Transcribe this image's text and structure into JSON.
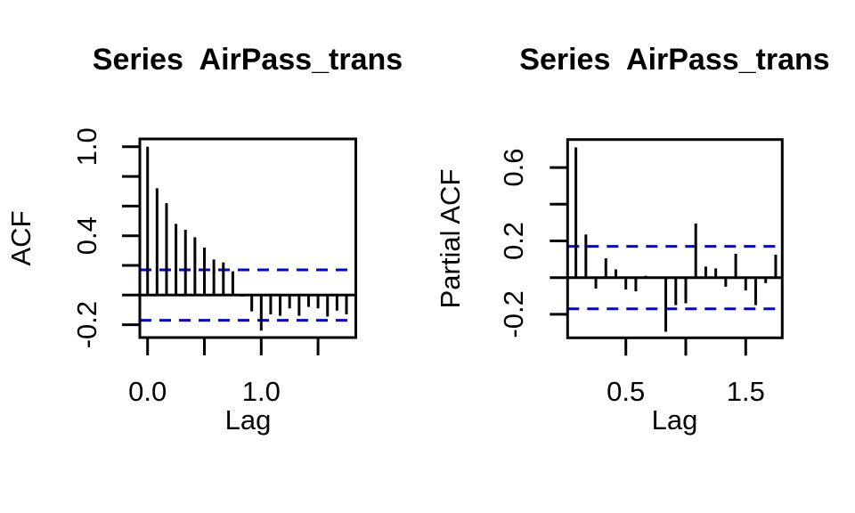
{
  "figure": {
    "background": "#ffffff",
    "foreground": "#000000"
  },
  "chart_data": [
    {
      "type": "bar",
      "subtype": "autocorrelation",
      "title": "Series  AirPass_trans",
      "xlabel": "Lag",
      "ylabel": "ACF",
      "lag_unit": "years",
      "lag_step_years": 0.08333,
      "lags_months": [
        0,
        1,
        2,
        3,
        4,
        5,
        6,
        7,
        8,
        9,
        10,
        11,
        12,
        13,
        14,
        15,
        16,
        17,
        18,
        19,
        20,
        21
      ],
      "values": [
        1.0,
        0.72,
        0.62,
        0.48,
        0.44,
        0.39,
        0.32,
        0.24,
        0.22,
        0.16,
        -0.01,
        -0.11,
        -0.24,
        -0.13,
        -0.14,
        -0.09,
        -0.14,
        -0.08,
        -0.09,
        -0.145,
        -0.105,
        -0.13
      ],
      "conf_interval": 0.17,
      "conf_line_color": "#0000ee",
      "conf_line_style": "dashed",
      "bar_color": "#000000",
      "x_ticks": {
        "values": [
          0.0,
          0.5,
          1.0,
          1.5
        ],
        "labels": [
          "0.0",
          "",
          "1.0",
          ""
        ]
      },
      "y_ticks": {
        "values": [
          1.0,
          0.8,
          0.6,
          0.4,
          0.2,
          0.0,
          -0.2
        ],
        "labels": [
          "1.0",
          "",
          "",
          "0.4",
          "",
          "",
          "-0.2"
        ]
      },
      "xlim": [
        -0.07,
        1.82
      ],
      "ylim": [
        -0.28,
        1.05
      ],
      "grid": "off",
      "legend": "none"
    },
    {
      "type": "bar",
      "subtype": "partial-autocorrelation",
      "title": "Series  AirPass_trans",
      "xlabel": "Lag",
      "ylabel": "Partial ACF",
      "lag_unit": "years",
      "lag_step_years": 0.08333,
      "lags_months": [
        1,
        2,
        3,
        4,
        5,
        6,
        7,
        8,
        9,
        10,
        11,
        12,
        13,
        14,
        15,
        16,
        17,
        18,
        19,
        20,
        21
      ],
      "values": [
        0.71,
        0.235,
        -0.06,
        0.105,
        0.045,
        -0.065,
        -0.075,
        0.01,
        0.005,
        -0.295,
        -0.15,
        -0.14,
        0.295,
        0.06,
        0.05,
        -0.05,
        0.13,
        -0.07,
        -0.15,
        -0.03,
        0.125
      ],
      "conf_interval": 0.17,
      "conf_line_color": "#0000ee",
      "conf_line_style": "dashed",
      "bar_color": "#000000",
      "x_ticks": {
        "values": [
          0.5,
          1.0,
          1.5
        ],
        "labels": [
          "0.5",
          "",
          "1.5"
        ]
      },
      "y_ticks": {
        "values": [
          0.6,
          0.4,
          0.2,
          0.0,
          -0.2
        ],
        "labels": [
          "0.6",
          "",
          "0.2",
          "",
          "-0.2"
        ]
      },
      "xlim": [
        0.02,
        1.82
      ],
      "ylim": [
        -0.33,
        0.75
      ],
      "grid": "off",
      "legend": "none"
    }
  ]
}
